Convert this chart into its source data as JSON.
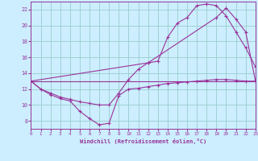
{
  "background_color": "#cceeff",
  "grid_color": "#99cccc",
  "line_color": "#993399",
  "xlabel": "Windchill (Refroidissement éolien,°C)",
  "xlim": [
    0,
    23
  ],
  "ylim": [
    7,
    23
  ],
  "yticks": [
    8,
    10,
    12,
    14,
    16,
    18,
    20,
    22
  ],
  "xticks": [
    0,
    1,
    2,
    3,
    4,
    5,
    6,
    7,
    8,
    9,
    10,
    11,
    12,
    13,
    14,
    15,
    16,
    17,
    18,
    19,
    20,
    21,
    22,
    23
  ],
  "line1_x": [
    0,
    1,
    2,
    3,
    4,
    5,
    6,
    7,
    8,
    9,
    10,
    11,
    12,
    13,
    14,
    15,
    16,
    17,
    18,
    19,
    20,
    21,
    22,
    23
  ],
  "line1_y": [
    13.0,
    12.0,
    11.3,
    10.8,
    10.5,
    9.2,
    8.3,
    7.5,
    7.7,
    11.2,
    12.0,
    12.1,
    12.3,
    12.5,
    12.7,
    12.8,
    12.9,
    13.0,
    13.1,
    13.2,
    13.2,
    13.1,
    13.0,
    13.0
  ],
  "line2_x": [
    0,
    1,
    2,
    3,
    4,
    5,
    6,
    7,
    8,
    9,
    10,
    11,
    12,
    13,
    14,
    15,
    16,
    17,
    18,
    19,
    20,
    21,
    22,
    23
  ],
  "line2_y": [
    13.0,
    12.0,
    11.5,
    11.0,
    10.7,
    10.4,
    10.2,
    10.0,
    10.0,
    11.5,
    13.2,
    14.5,
    15.3,
    15.5,
    18.5,
    20.3,
    21.0,
    22.5,
    22.7,
    22.5,
    21.2,
    19.2,
    17.2,
    14.8
  ],
  "line3_x": [
    0,
    23
  ],
  "line3_y": [
    13.0,
    13.0
  ],
  "line4_x": [
    0,
    12,
    19,
    20,
    21,
    22,
    23
  ],
  "line4_y": [
    13.0,
    15.3,
    21.0,
    22.2,
    20.8,
    19.2,
    13.0
  ]
}
